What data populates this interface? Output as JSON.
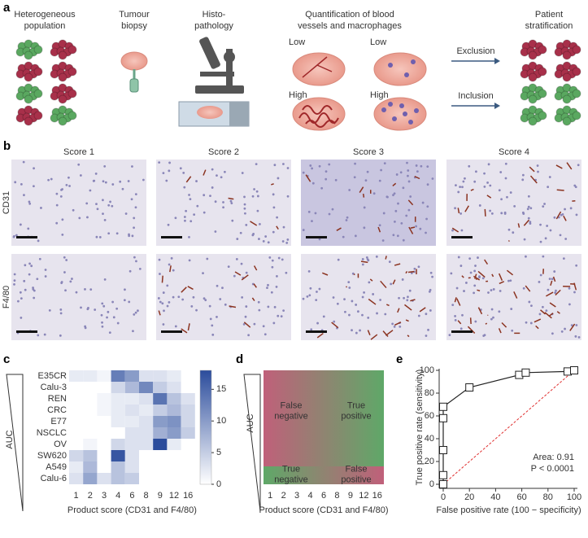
{
  "panel_a": {
    "label": "a",
    "steps": [
      {
        "lines": [
          "Heterogeneous",
          "population"
        ]
      },
      {
        "lines": [
          "Tumour",
          "biopsy"
        ]
      },
      {
        "lines": [
          "Histo-",
          "pathology"
        ]
      },
      {
        "lines": [
          "Quantification of blood",
          "vessels and macrophages"
        ]
      },
      {
        "lines": [
          "Patient",
          "stratification"
        ]
      }
    ],
    "quant_labels": [
      "Low",
      "Low",
      "High",
      "High"
    ],
    "arrows": [
      "Exclusion",
      "Inclusion"
    ]
  },
  "panel_b": {
    "label": "b",
    "columns": [
      "Score 1",
      "Score 2",
      "Score 3",
      "Score 4"
    ],
    "rows": [
      "CD31",
      "F4/80"
    ]
  },
  "panel_d": {
    "label": "d",
    "y_axis_label": "AUC",
    "x_axis_label": "Product score (CD31 and F4/80)",
    "categories": [
      "1",
      "2",
      "3",
      "4",
      "6",
      "8",
      "9",
      "12",
      "16"
    ],
    "quadrants": [
      [
        "False",
        "negative"
      ],
      [
        "True",
        "positive"
      ],
      [
        "True",
        "negative"
      ],
      [
        "False",
        "positive"
      ]
    ]
  },
  "chart_data": [
    {
      "panel_label": "c",
      "type": "heatmap",
      "y_axis_label": "AUC",
      "x_axis_label": "Product score (CD31 and F4/80)",
      "categories": [
        "1",
        "2",
        "3",
        "4",
        "6",
        "8",
        "9",
        "12",
        "16"
      ],
      "rows": [
        "E35CR",
        "Calu-3",
        "REN",
        "CRC",
        "E77",
        "NSCLC",
        "OV",
        "SW620",
        "A549",
        "Calu-6"
      ],
      "values": [
        [
          2,
          2,
          1,
          13,
          10,
          3,
          3,
          2,
          null
        ],
        [
          null,
          null,
          null,
          4,
          7,
          12,
          5,
          3,
          null
        ],
        [
          null,
          null,
          1,
          2,
          2,
          3,
          14,
          6,
          3
        ],
        [
          null,
          null,
          1,
          2,
          3,
          2,
          5,
          7,
          4
        ],
        [
          null,
          null,
          null,
          2,
          2,
          3,
          10,
          11,
          4
        ],
        [
          null,
          null,
          null,
          null,
          3,
          3,
          8,
          10,
          5
        ],
        [
          null,
          1,
          null,
          4,
          3,
          3,
          18,
          2,
          null
        ],
        [
          4,
          6,
          null,
          17,
          3,
          null,
          null,
          null,
          null
        ],
        [
          2,
          7,
          null,
          6,
          3,
          null,
          null,
          null,
          null
        ],
        [
          3,
          9,
          3,
          6,
          5,
          null,
          null,
          null,
          null
        ]
      ],
      "clim": [
        0,
        18
      ],
      "cticks": [
        0,
        5,
        10,
        15
      ],
      "colors": [
        "#ffffff",
        "#2b4c9c"
      ]
    },
    {
      "panel_label": "e",
      "type": "line",
      "x_axis_label": "False positive rate (100 − specificity)",
      "y_axis_label": "True positive rate (sensitivity)",
      "x": [
        0,
        0,
        0,
        0,
        0,
        20,
        58,
        63,
        95,
        100
      ],
      "series": [
        {
          "color": "#222222",
          "values": [
            0,
            8,
            30,
            58,
            68,
            85,
            96,
            98,
            99,
            100
          ]
        }
      ],
      "xlim": [
        0,
        100
      ],
      "ylim": [
        0,
        100
      ],
      "xticks": [
        0,
        20,
        40,
        60,
        80,
        100
      ],
      "yticks": [
        0,
        20,
        40,
        60,
        80,
        100
      ],
      "reference_color": "#e03030",
      "annotations": [
        "Area: 0.91",
        "P < 0.0001"
      ]
    }
  ]
}
